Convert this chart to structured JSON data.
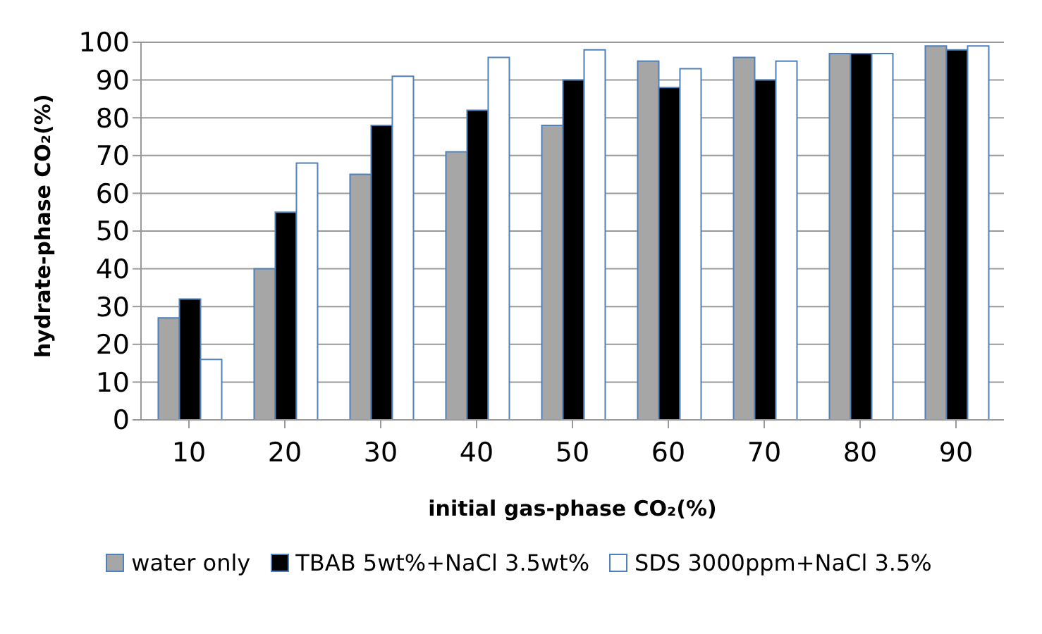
{
  "chart_data": {
    "type": "bar",
    "xlabel": "initial gas-phase CO₂(%)",
    "ylabel": "hydrate-phase CO₂(%)",
    "categories": [
      "10",
      "20",
      "30",
      "40",
      "50",
      "60",
      "70",
      "80",
      "90"
    ],
    "series": [
      {
        "name": "water only",
        "color": "#a6a6a6",
        "values": [
          27,
          40,
          65,
          71,
          78,
          95,
          96,
          97,
          99
        ]
      },
      {
        "name": "TBAB 5wt%+NaCl 3.5wt%",
        "color": "#000000",
        "values": [
          32,
          55,
          78,
          82,
          90,
          88,
          90,
          97,
          98
        ]
      },
      {
        "name": "SDS 3000ppm+NaCl 3.5%",
        "color": "#ffffff",
        "values": [
          16,
          68,
          91,
          96,
          98,
          93,
          95,
          97,
          99
        ]
      }
    ],
    "ylim": [
      0,
      100
    ],
    "yticks": [
      0,
      10,
      20,
      30,
      40,
      50,
      60,
      70,
      80,
      90,
      100
    ],
    "grid": "y",
    "legend": "bottom"
  }
}
